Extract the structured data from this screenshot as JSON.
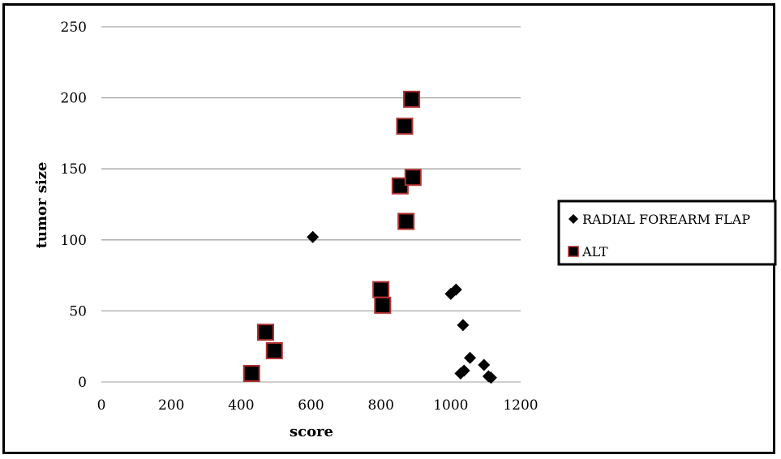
{
  "chart_data": {
    "type": "scatter",
    "title": "",
    "xlabel": "score",
    "ylabel": "tumor size",
    "xlim": [
      0,
      1200
    ],
    "ylim": [
      0,
      250
    ],
    "xticks": [
      "0",
      "200",
      "400",
      "600",
      "800",
      "1000",
      "1200"
    ],
    "yticks": [
      "0",
      "50",
      "100",
      "150",
      "200",
      "250"
    ],
    "grid": "horizontal",
    "legend_position": "right",
    "series": [
      {
        "name": "RADIAL FOREARM FLAP",
        "marker": "diamond",
        "color": "#000000",
        "points": [
          {
            "x": 605,
            "y": 102
          },
          {
            "x": 1000,
            "y": 62
          },
          {
            "x": 1015,
            "y": 65
          },
          {
            "x": 1035,
            "y": 40
          },
          {
            "x": 1055,
            "y": 17
          },
          {
            "x": 1028,
            "y": 6
          },
          {
            "x": 1038,
            "y": 8
          },
          {
            "x": 1095,
            "y": 12
          },
          {
            "x": 1108,
            "y": 4
          },
          {
            "x": 1115,
            "y": 3
          }
        ]
      },
      {
        "name": "ALT",
        "marker": "square",
        "color": "#000000",
        "edge_color": "#b03030",
        "points": [
          {
            "x": 430,
            "y": 6
          },
          {
            "x": 470,
            "y": 35
          },
          {
            "x": 495,
            "y": 22
          },
          {
            "x": 800,
            "y": 65
          },
          {
            "x": 805,
            "y": 54
          },
          {
            "x": 855,
            "y": 138
          },
          {
            "x": 868,
            "y": 180
          },
          {
            "x": 872,
            "y": 113
          },
          {
            "x": 888,
            "y": 199
          },
          {
            "x": 892,
            "y": 144
          }
        ]
      }
    ]
  }
}
